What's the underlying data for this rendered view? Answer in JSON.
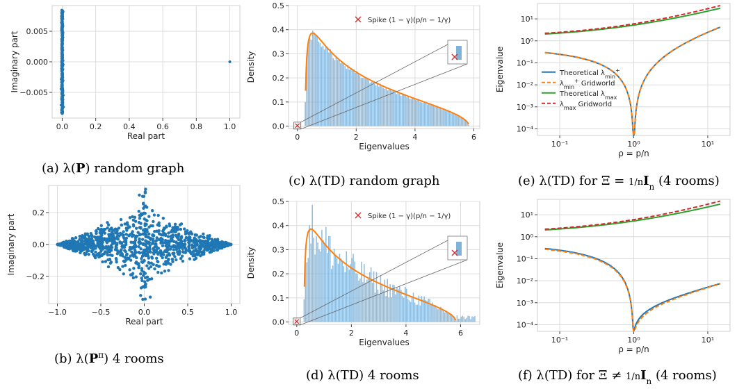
{
  "colors": {
    "blue": "#1f77b4",
    "orange": "#ff7f0e",
    "green": "#2ca02c",
    "red": "#d62728",
    "hist": "#7fb3d9",
    "grid": "#dcdcdc"
  },
  "chart_data": [
    {
      "id": "a",
      "type": "scatter",
      "caption": "(a) λ(P) random graph",
      "xlabel": "Real part",
      "ylabel": "Imaginary part",
      "xlim": [
        -0.06,
        1.06
      ],
      "ylim": [
        -0.0092,
        0.0092
      ],
      "xticks": [
        "0.0",
        "0.2",
        "0.4",
        "0.6",
        "0.8",
        "1.0"
      ],
      "xtickv": [
        0,
        0.2,
        0.4,
        0.6,
        0.8,
        1.0
      ],
      "yticks": [
        "−0.005",
        "0.000",
        "0.005"
      ],
      "ytickv": [
        -0.005,
        0,
        0.005
      ],
      "points_note": "eigenvalue cluster at Re≈0 spanning Im∈[-0.0085,0.0085]; outlier at (1.0, 0.0)",
      "outlier": [
        1.0,
        0.0
      ]
    },
    {
      "id": "b",
      "type": "scatter",
      "caption": "(b) λ(P^π) 4 rooms",
      "xlabel": "Real part",
      "ylabel": "Imaginary part",
      "xlim": [
        -1.1,
        1.1
      ],
      "ylim": [
        -0.37,
        0.37
      ],
      "xticks": [
        "−1.0",
        "−0.5",
        "0.0",
        "0.5",
        "1.0"
      ],
      "xtickv": [
        -1,
        -0.5,
        0,
        0.5,
        1
      ],
      "yticks": [
        "−0.2",
        "0.0",
        "0.2"
      ],
      "ytickv": [
        -0.2,
        0,
        0.2
      ],
      "points_note": "diamond-shaped cloud over Re∈[-1,1], |Im|≤0.25(1-|Re|) plus vertical spread near Re≈0 up to ±0.35"
    },
    {
      "id": "c",
      "type": "bar",
      "caption": "(c) λ(TD) random graph",
      "xlabel": "Eigenvalues",
      "ylabel": "Density",
      "xlim": [
        -0.3,
        6.2
      ],
      "ylim": [
        -0.01,
        0.5
      ],
      "xticks": [
        "0",
        "2",
        "4",
        "6"
      ],
      "xtickv": [
        0,
        2,
        4,
        6
      ],
      "yticks": [
        "0.0",
        "0.1",
        "0.2",
        "0.3",
        "0.4",
        "0.5"
      ],
      "ytickv": [
        0,
        0.1,
        0.2,
        0.3,
        0.4,
        0.5
      ],
      "support": [
        0.27,
        5.83
      ],
      "peak": [
        0.38,
        0.45
      ],
      "legend": [
        "Spike (1 − γ)(p/n − 1/γ)"
      ],
      "spike_x": 0.0
    },
    {
      "id": "d",
      "type": "bar",
      "caption": "(d) λ(TD) 4 rooms",
      "xlabel": "Eigenvalues",
      "ylabel": "Density",
      "xlim": [
        -0.3,
        6.7
      ],
      "ylim": [
        -0.01,
        0.5
      ],
      "xticks": [
        "0",
        "2",
        "4",
        "6"
      ],
      "xtickv": [
        0,
        2,
        4,
        6
      ],
      "yticks": [
        "0.0",
        "0.1",
        "0.2",
        "0.3",
        "0.4",
        "0.5"
      ],
      "ytickv": [
        0,
        0.1,
        0.2,
        0.3,
        0.4,
        0.5
      ],
      "support": [
        0.27,
        5.83
      ],
      "peak": [
        0.38,
        0.45
      ],
      "legend": [
        "Spike (1 − γ)(p/n − 1/γ)"
      ],
      "spike_x": 0.0
    },
    {
      "id": "e",
      "type": "line",
      "caption": "(e) λ(TD) for Ξ = (1/n) I_n (4 rooms)",
      "xlabel": "ρ = p/n",
      "ylabel": "Eigenvalue",
      "xscale": "log",
      "yscale": "log",
      "xlim": [
        0.05,
        20
      ],
      "ylim": [
        5e-05,
        50
      ],
      "xticks": [
        "10⁻¹",
        "10⁰",
        "10¹"
      ],
      "yticks": [
        "10⁻⁴",
        "10⁻³",
        "10⁻²",
        "10⁻¹",
        "10⁰",
        "10¹"
      ],
      "series": [
        {
          "name": "Theoretical λ⁺min",
          "color": "#1f77b4",
          "values": "min-curve, from 0.5 at ρ=0.063 dropping to 0 at ρ=1, rising to 0.13 at ρ=15"
        },
        {
          "name": "λ⁺min Gridworld",
          "color": "#ff7f0e",
          "style": "dashed"
        },
        {
          "name": "Theoretical λmax",
          "color": "#2ca02c",
          "values": "from 1.5 at ρ=0.063 to 22 at ρ=15"
        },
        {
          "name": "λmax Gridworld",
          "color": "#d62728",
          "style": "dashed"
        }
      ],
      "legend_labels": [
        "Theoretical λ",
        "λ",
        "Theoretical λ",
        "λ"
      ],
      "legend_subs": [
        "min",
        "min",
        "max",
        "max"
      ],
      "legend_sups": [
        "+",
        "+",
        "",
        ""
      ],
      "legend_suffix": [
        "",
        "Gridworld",
        "",
        "Gridworld"
      ]
    },
    {
      "id": "f",
      "type": "line",
      "caption": "(f) λ(TD) for Ξ ≠ (1/n) I_n (4 rooms)",
      "xlabel": "ρ = p/n",
      "ylabel": "Eigenvalue",
      "xscale": "log",
      "yscale": "log",
      "xlim": [
        0.05,
        20
      ],
      "ylim": [
        5e-05,
        50
      ],
      "xticks": [
        "10⁻¹",
        "10⁰",
        "10¹"
      ],
      "yticks": [
        "10⁻⁴",
        "10⁻³",
        "10⁻²",
        "10⁻¹",
        "10⁰",
        "10¹"
      ]
    }
  ],
  "captions": {
    "a_pre": "(a) λ(",
    "a_bold": "P",
    "a_post": ") random graph",
    "b_pre": "(b) λ(",
    "b_bold": "P",
    "b_sup": "π",
    "b_post": ") 4 rooms",
    "c": "(c) λ(TD) random graph",
    "d": "(d) λ(TD) 4 rooms",
    "e_pre": "(e) λ(TD) for Ξ = ",
    "e_num": "1",
    "e_den": "n",
    "e_bold": "I",
    "e_sub": "n",
    "e_post": " (4 rooms)",
    "f_pre": "(f) λ(TD) for Ξ ≠ ",
    "f_num": "1",
    "f_den": "n",
    "f_bold": "I",
    "f_sub": "n",
    "f_post": " (4 rooms)"
  },
  "legend_spike": {
    "pre": "Spike (1 − γ)(",
    "frac1_num": "p",
    "frac1_den": "n",
    "mid": " − ",
    "frac2_num": "1",
    "frac2_den": "γ",
    "post": ")"
  }
}
